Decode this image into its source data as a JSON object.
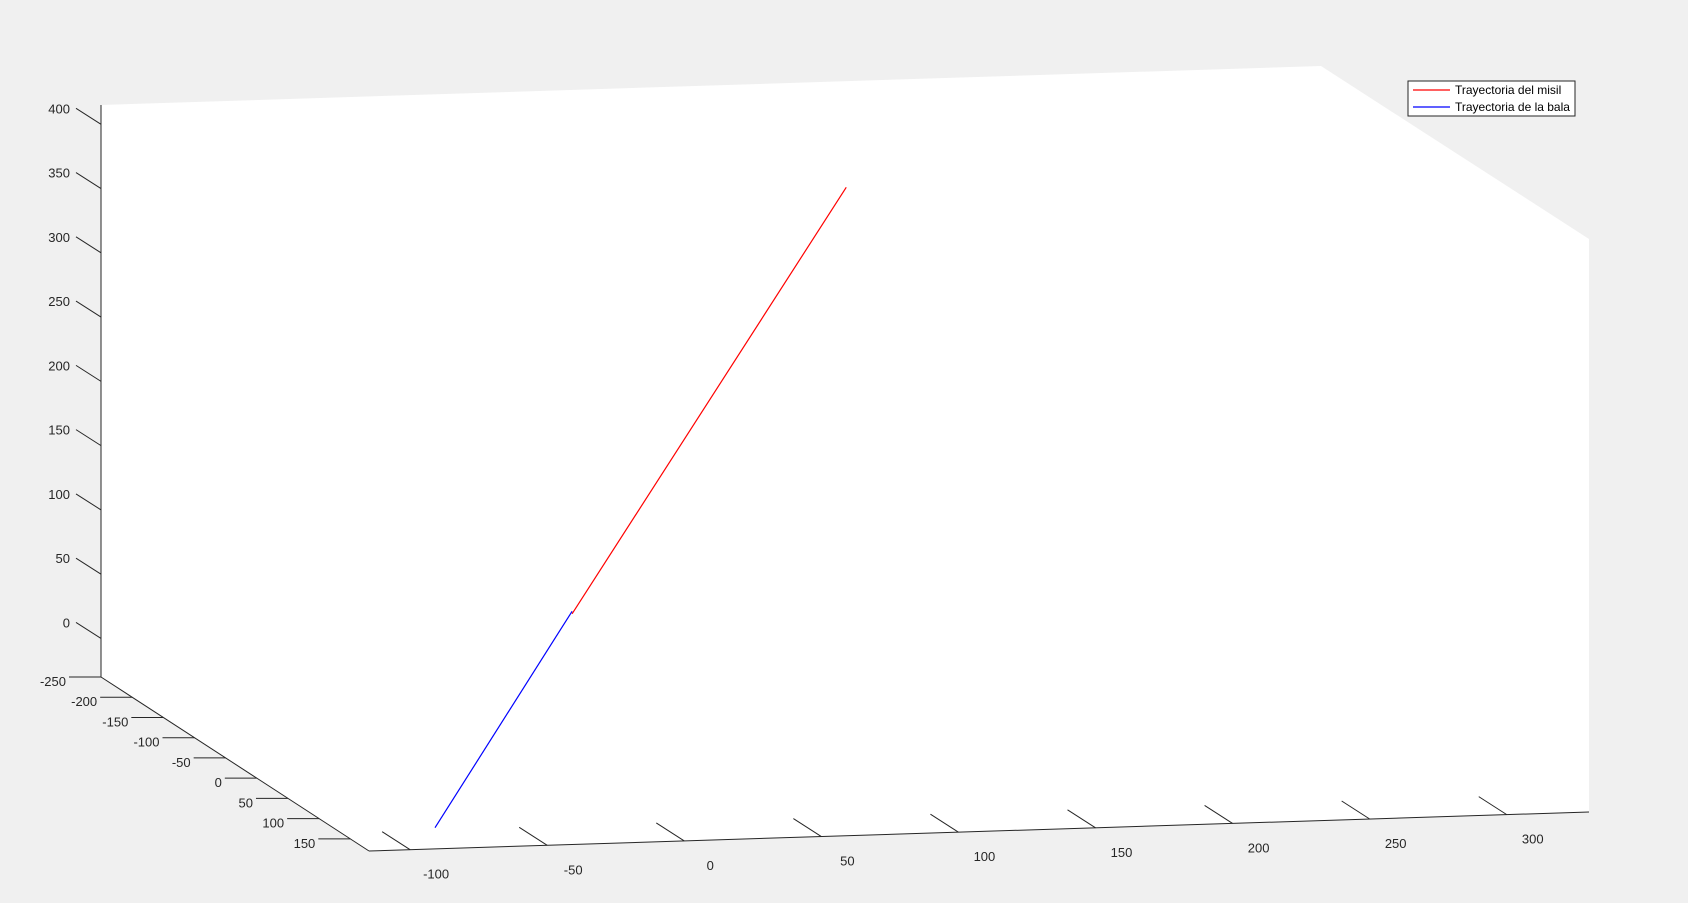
{
  "chart_data": {
    "type": "line",
    "projection": "3d",
    "title": "",
    "xlabel": "",
    "ylabel": "",
    "zlabel": "",
    "grid": false,
    "legend_placement": "top-right",
    "x_ticks": [
      "-100",
      "-50",
      "0",
      "50",
      "100",
      "150",
      "200",
      "250",
      "300"
    ],
    "y_ticks": [
      "-250",
      "-200",
      "-150",
      "-100",
      "-50",
      "0",
      "50",
      "100",
      "150"
    ],
    "z_ticks": [
      "0",
      "50",
      "100",
      "150",
      "200",
      "250",
      "300",
      "350",
      "400"
    ],
    "xlim": [
      -115,
      330
    ],
    "ylim": [
      -250,
      180
    ],
    "zlim": [
      -30,
      415
    ],
    "series": [
      {
        "name": "Trayectoria del misil",
        "color": "#ff0000",
        "points": [
          {
            "x": 0,
            "y": 0,
            "z": 90
          },
          {
            "x": 100,
            "y": 0,
            "z": 415
          }
        ]
      },
      {
        "name": "Trayectoria de la bala",
        "color": "#0000ff",
        "points": [
          {
            "x": -50,
            "y": 0,
            "z": -73
          },
          {
            "x": 0,
            "y": 0,
            "z": 92
          }
        ]
      }
    ]
  }
}
